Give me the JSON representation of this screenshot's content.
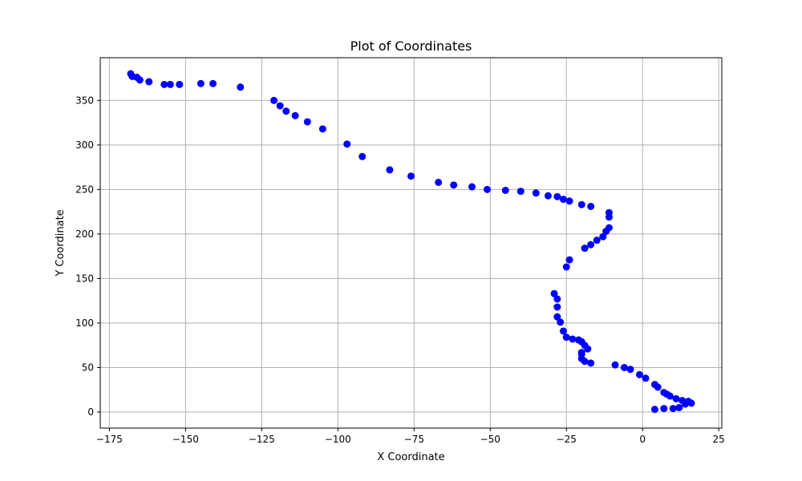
{
  "chart_data": {
    "type": "scatter",
    "title": "Plot of Coordinates",
    "xlabel": "X Coordinate",
    "ylabel": "Y Coordinate",
    "xlim": [
      -178,
      26
    ],
    "ylim": [
      -18,
      398
    ],
    "xticks": [
      -175,
      -150,
      -125,
      -100,
      -75,
      -50,
      -25,
      0,
      25
    ],
    "yticks": [
      0,
      50,
      100,
      150,
      200,
      250,
      300,
      350
    ],
    "grid": true,
    "marker_color": "#0000ff",
    "points": [
      [
        -168,
        380
      ],
      [
        -167.5,
        377
      ],
      [
        -166,
        376
      ],
      [
        -165,
        373
      ],
      [
        -162,
        371
      ],
      [
        -157,
        368
      ],
      [
        -155,
        368
      ],
      [
        -152,
        368
      ],
      [
        -145,
        369
      ],
      [
        -141,
        369
      ],
      [
        -132,
        365
      ],
      [
        -121,
        350
      ],
      [
        -119,
        344
      ],
      [
        -117,
        338
      ],
      [
        -114,
        333
      ],
      [
        -110,
        326
      ],
      [
        -105,
        318
      ],
      [
        -97,
        301
      ],
      [
        -92,
        287
      ],
      [
        -83,
        272
      ],
      [
        -76,
        265
      ],
      [
        -67,
        258
      ],
      [
        -62,
        255
      ],
      [
        -56,
        253
      ],
      [
        -51,
        250
      ],
      [
        -45,
        249
      ],
      [
        -40,
        248
      ],
      [
        -35,
        246
      ],
      [
        -31,
        243
      ],
      [
        -28,
        242
      ],
      [
        -26,
        239
      ],
      [
        -24,
        237
      ],
      [
        -20,
        233
      ],
      [
        -17,
        231
      ],
      [
        -11,
        224
      ],
      [
        -11,
        219
      ],
      [
        -11,
        207
      ],
      [
        -12,
        203
      ],
      [
        -13,
        197
      ],
      [
        -15,
        193
      ],
      [
        -17,
        188
      ],
      [
        -19,
        184
      ],
      [
        -24,
        171
      ],
      [
        -25,
        163
      ],
      [
        -29,
        133
      ],
      [
        -28,
        127
      ],
      [
        -28,
        118
      ],
      [
        -28,
        107
      ],
      [
        -27,
        101
      ],
      [
        -26,
        91
      ],
      [
        -25,
        84
      ],
      [
        -23,
        82
      ],
      [
        -21,
        81
      ],
      [
        -20,
        79
      ],
      [
        -19,
        75
      ],
      [
        -18,
        71
      ],
      [
        -20,
        67
      ],
      [
        -20,
        65
      ],
      [
        -20,
        60
      ],
      [
        -19,
        57
      ],
      [
        -17,
        55
      ],
      [
        -9,
        53
      ],
      [
        -6,
        50
      ],
      [
        -4,
        48
      ],
      [
        -1,
        42
      ],
      [
        1,
        38
      ],
      [
        4,
        31
      ],
      [
        5,
        28
      ],
      [
        7,
        22
      ],
      [
        8,
        20
      ],
      [
        9,
        18
      ],
      [
        11,
        15
      ],
      [
        13,
        13
      ],
      [
        14,
        9
      ],
      [
        15,
        12
      ],
      [
        16,
        10
      ],
      [
        12,
        5
      ],
      [
        10,
        4
      ],
      [
        7,
        4
      ],
      [
        4,
        3
      ]
    ]
  }
}
